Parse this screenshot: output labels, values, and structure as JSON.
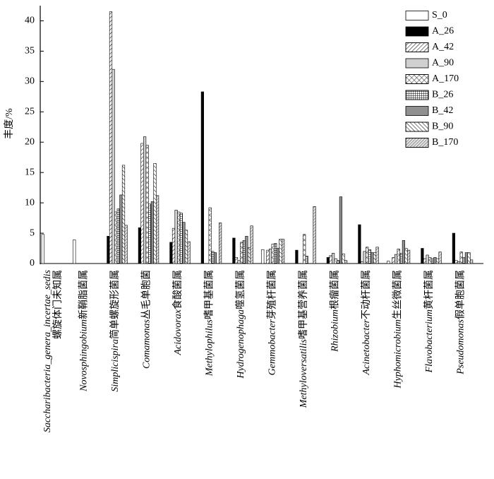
{
  "chart_data": {
    "type": "bar",
    "y_label": "丰度/%",
    "categories": [
      "Saccharibacteria_genera_incertae_sedis螺旋体门未知属",
      "Novosphingobium新鞘脂菌属",
      "Simplicispira简单螺旋形菌属",
      "Comamonas丛毛单胞菌",
      "Acidovorax食酸菌属",
      "Methylophilus嗜甲基菌属",
      "Hydrogenophaga噬氢菌属",
      "Gemmobacter芽殖杆菌属",
      "Methyloversatilis嗜甲基营养菌属",
      "Rhizobium根瘤菌属",
      "Acinetobacter不动杆菌属",
      "Hyphomicrobium生丝微菌属",
      "Flavobacterium黄杆菌属",
      "Pseudomonas假单胞菌属"
    ],
    "series": [
      {
        "name": "S_0",
        "color": "#ffffff",
        "pattern": "solid",
        "values": [
          4.8,
          3.9,
          0,
          0,
          0,
          0,
          0,
          2.3,
          0,
          0,
          0,
          0.4,
          0,
          0
        ]
      },
      {
        "name": "A_26",
        "color": "#000000",
        "pattern": "solid",
        "values": [
          0,
          0,
          4.5,
          5.9,
          3.5,
          28.3,
          4.2,
          0,
          2.2,
          1.0,
          6.4,
          0,
          2.5,
          5.0
        ]
      },
      {
        "name": "A_42",
        "color": "#ffffff",
        "pattern": "diagonal",
        "values": [
          0,
          0,
          41.5,
          19.8,
          5.8,
          0,
          1.0,
          2.2,
          0,
          1.3,
          0.3,
          1.0,
          0.8,
          0.5
        ]
      },
      {
        "name": "A_90",
        "color": "#d0d0d0",
        "pattern": "solid",
        "values": [
          0,
          0,
          32,
          20.9,
          8.8,
          0,
          0.5,
          2.4,
          0,
          1.7,
          2.0,
          1.5,
          1.4,
          0.3
        ]
      },
      {
        "name": "A_170",
        "color": "#ffffff",
        "pattern": "crosshatch",
        "values": [
          0,
          0,
          8.5,
          19.5,
          8.5,
          9.2,
          3.5,
          3.2,
          4.8,
          0.8,
          2.7,
          2.4,
          1.0,
          1.9
        ]
      },
      {
        "name": "B_26",
        "color": "#ffffff",
        "pattern": "grid",
        "values": [
          0,
          0,
          9.0,
          9.8,
          8.3,
          2.0,
          3.8,
          3.3,
          1.2,
          0.5,
          2.3,
          1.7,
          0.8,
          1.0
        ]
      },
      {
        "name": "B_42",
        "color": "#909090",
        "pattern": "solid",
        "values": [
          0,
          0,
          11.3,
          10.2,
          6.8,
          1.8,
          4.5,
          2.5,
          0,
          11.0,
          1.8,
          3.8,
          1.0,
          1.8
        ]
      },
      {
        "name": "B_90",
        "color": "#ffffff",
        "pattern": "backslash",
        "values": [
          0,
          0,
          16.2,
          16.5,
          5.5,
          0,
          2.6,
          4.0,
          0,
          1.6,
          1.8,
          2.5,
          0.8,
          1.8
        ]
      },
      {
        "name": "B_170",
        "color": "#e0e0e0",
        "pattern": "dense-diagonal",
        "values": [
          0,
          0,
          6.3,
          11.2,
          3.6,
          6.7,
          6.2,
          4.0,
          9.4,
          0.5,
          2.7,
          2.2,
          1.9,
          0.6
        ]
      }
    ],
    "ylim": [
      0,
      42.5
    ],
    "yticks": [
      0,
      5,
      10,
      15,
      20,
      25,
      30,
      35,
      40
    ],
    "legend": "top-right"
  }
}
